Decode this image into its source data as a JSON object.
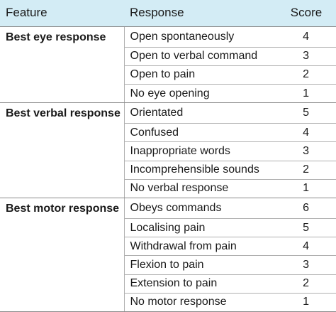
{
  "headers": {
    "feature": "Feature",
    "response": "Response",
    "score": "Score"
  },
  "groups": [
    {
      "feature": "Best eye response",
      "rows": [
        {
          "response": "Open spontaneously",
          "score": "4"
        },
        {
          "response": "Open to verbal command",
          "score": "3"
        },
        {
          "response": "Open to pain",
          "score": "2"
        },
        {
          "response": "No eye opening",
          "score": "1"
        }
      ]
    },
    {
      "feature": "Best verbal response",
      "rows": [
        {
          "response": "Orientated",
          "score": "5"
        },
        {
          "response": "Confused",
          "score": "4"
        },
        {
          "response": "Inappropriate words",
          "score": "3"
        },
        {
          "response": "Incomprehensible sounds",
          "score": "2"
        },
        {
          "response": "No verbal response",
          "score": "1"
        }
      ]
    },
    {
      "feature": "Best motor response",
      "rows": [
        {
          "response": "Obeys commands",
          "score": "6"
        },
        {
          "response": "Localising pain",
          "score": "5"
        },
        {
          "response": "Withdrawal from pain",
          "score": "4"
        },
        {
          "response": "Flexion to pain",
          "score": "3"
        },
        {
          "response": "Extension to pain",
          "score": "2"
        },
        {
          "response": "No motor response",
          "score": "1"
        }
      ]
    }
  ],
  "colors": {
    "header_background": "#d3ecf5",
    "row_divider": "#b0b0b0",
    "group_divider": "#8a8a8a"
  }
}
